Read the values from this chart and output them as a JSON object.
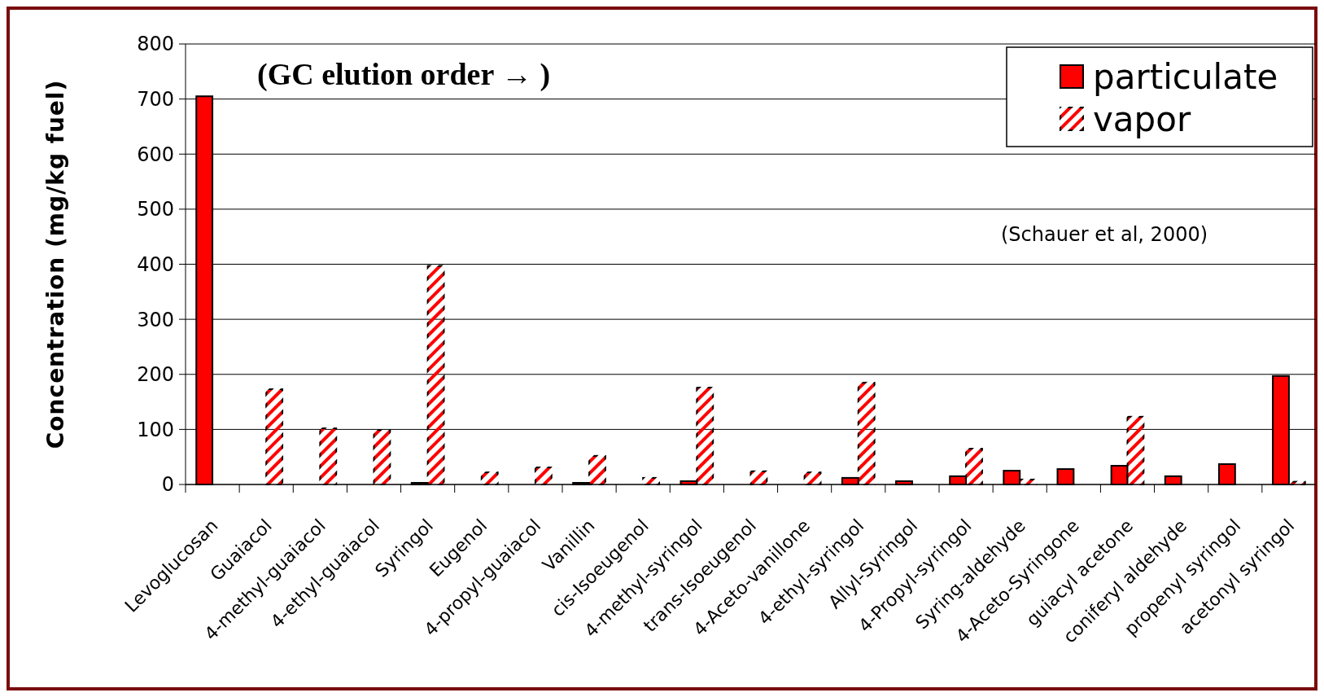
{
  "chart_data": {
    "type": "bar",
    "ylabel": "Concentration (mg/kg fuel)",
    "categories": [
      "Levoglucosan",
      "Guaiacol",
      "4-methyl-guaiacol",
      "4-ethyl-guaiacol",
      "Syringol",
      "Eugenol",
      "4-propyl-guaiacol",
      "Vanillin",
      "cis-Isoeugenol",
      "4-methyl-syringol",
      "trans-Isoeugenol",
      "4-Aceto-vanillone",
      "4-ethyl-syringol",
      "Allyl-Syringol",
      "4-Propyl-syringol",
      "Syring-aldehyde",
      "4-Aceto-Syringone",
      "guiacyl acetone",
      "coniferyl aldehyde",
      "propenyl syringol",
      "acetonyl syringol"
    ],
    "series": [
      {
        "name": "particulate",
        "color": "#ff0000",
        "values": [
          705,
          null,
          null,
          null,
          3,
          null,
          null,
          3,
          null,
          6,
          null,
          null,
          12,
          6,
          15,
          25,
          28,
          34,
          15,
          37,
          197
        ]
      },
      {
        "name": "vapor",
        "color": "#ff0000",
        "values": [
          null,
          173,
          102,
          99,
          397,
          22,
          31,
          52,
          12,
          176,
          24,
          22,
          185,
          null,
          65,
          9,
          null,
          123,
          null,
          null,
          5
        ]
      }
    ],
    "ylim": [
      0,
      800
    ],
    "yticks": [
      0,
      100,
      200,
      300,
      400,
      500,
      600,
      700,
      800
    ],
    "grid": "y",
    "legend": "top right",
    "annotations": [
      "(GC elution order → )",
      "(Schauer et al, 2000)"
    ]
  }
}
